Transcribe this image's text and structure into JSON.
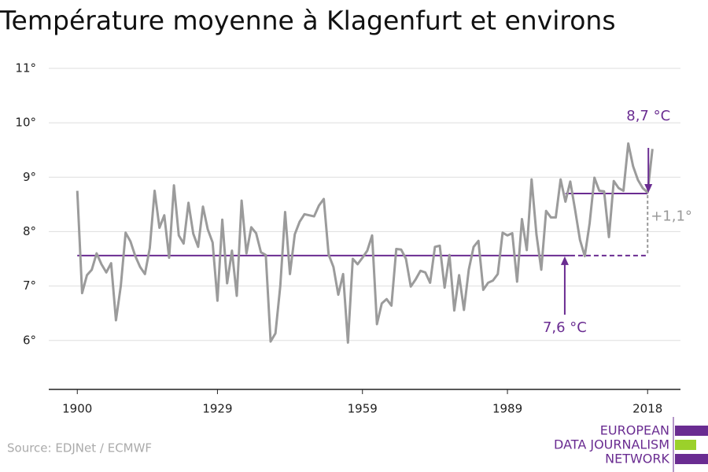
{
  "chart_data": {
    "type": "line",
    "title": "Température moyenne à Klagenfurt et environs",
    "source": "Source: EDJNet / ECMWF",
    "logo": [
      "EUROPEAN",
      "DATA JOURNALISM",
      "NETWORK"
    ],
    "x": [
      1900,
      1901,
      1902,
      1903,
      1904,
      1905,
      1906,
      1907,
      1908,
      1909,
      1910,
      1911,
      1912,
      1913,
      1914,
      1915,
      1916,
      1917,
      1918,
      1919,
      1920,
      1921,
      1922,
      1923,
      1924,
      1925,
      1926,
      1927,
      1928,
      1929,
      1930,
      1931,
      1932,
      1933,
      1934,
      1935,
      1936,
      1937,
      1938,
      1939,
      1940,
      1941,
      1942,
      1943,
      1944,
      1945,
      1946,
      1947,
      1948,
      1949,
      1950,
      1951,
      1952,
      1953,
      1954,
      1955,
      1956,
      1957,
      1958,
      1959,
      1960,
      1961,
      1962,
      1963,
      1964,
      1965,
      1966,
      1967,
      1968,
      1969,
      1970,
      1971,
      1972,
      1973,
      1974,
      1975,
      1976,
      1977,
      1978,
      1979,
      1980,
      1981,
      1982,
      1983,
      1984,
      1985,
      1986,
      1987,
      1988,
      1989,
      1990,
      1991,
      1992,
      1993,
      1994,
      1995,
      1996,
      1997,
      1998,
      1999,
      2000,
      2001,
      2002,
      2003,
      2004,
      2005,
      2006,
      2007,
      2008,
      2009,
      2010,
      2011,
      2012,
      2013,
      2014,
      2015,
      2016,
      2017,
      2018,
      2019
    ],
    "series": [
      {
        "name": "Température moyenne",
        "color": "#9b9b9b",
        "values": [
          8.75,
          6.87,
          7.2,
          7.3,
          7.6,
          7.4,
          7.25,
          7.42,
          6.37,
          7.0,
          7.98,
          7.82,
          7.55,
          7.35,
          7.22,
          7.7,
          8.75,
          8.07,
          8.3,
          7.52,
          8.85,
          7.93,
          7.78,
          8.53,
          7.96,
          7.72,
          8.46,
          8.04,
          7.8,
          6.73,
          8.22,
          7.05,
          7.65,
          6.82,
          8.57,
          7.6,
          8.08,
          7.97,
          7.62,
          7.57,
          5.98,
          6.13,
          7.0,
          8.36,
          7.22,
          7.95,
          8.18,
          8.32,
          8.3,
          8.28,
          8.48,
          8.6,
          7.58,
          7.35,
          6.84,
          7.22,
          5.96,
          7.5,
          7.4,
          7.52,
          7.65,
          7.93,
          6.3,
          6.68,
          6.76,
          6.64,
          7.68,
          7.67,
          7.5,
          6.99,
          7.12,
          7.28,
          7.25,
          7.06,
          7.72,
          7.74,
          6.97,
          7.57,
          6.55,
          7.2,
          6.56,
          7.3,
          7.72,
          7.83,
          6.93,
          7.06,
          7.1,
          7.22,
          7.98,
          7.93,
          7.97,
          7.08,
          8.23,
          7.66,
          8.96,
          7.95,
          7.3,
          8.38,
          8.26,
          8.26,
          8.96,
          8.55,
          8.92,
          8.4,
          7.85,
          7.55,
          8.15,
          8.99,
          8.75,
          8.74,
          7.9,
          8.93,
          8.8,
          8.75,
          9.62,
          9.2,
          8.95,
          8.8,
          8.72,
          9.52
        ]
      }
    ],
    "reference_lines": [
      {
        "label": "7,6 °C",
        "value": 7.56,
        "from": 1900,
        "to": 2002,
        "dashed_to": 2018,
        "color": "#6a2c91"
      },
      {
        "label": "8,7 °C",
        "value": 8.7,
        "from": 2001,
        "to": 2018,
        "color": "#6a2c91"
      }
    ],
    "difference_label": "+1,1°",
    "xlim": [
      1894.1,
      2024.8
    ],
    "xticks": [
      1900,
      1929,
      1959,
      1989,
      2018
    ],
    "ylim": [
      5.1,
      11.1
    ],
    "yticks": [
      {
        "value": 6,
        "label": "6°"
      },
      {
        "value": 7,
        "label": "7°"
      },
      {
        "value": 8,
        "label": "8°"
      },
      {
        "value": 9,
        "label": "9°"
      },
      {
        "value": 10,
        "label": "10°"
      },
      {
        "value": 11,
        "label": "11°"
      }
    ],
    "grid": true
  }
}
